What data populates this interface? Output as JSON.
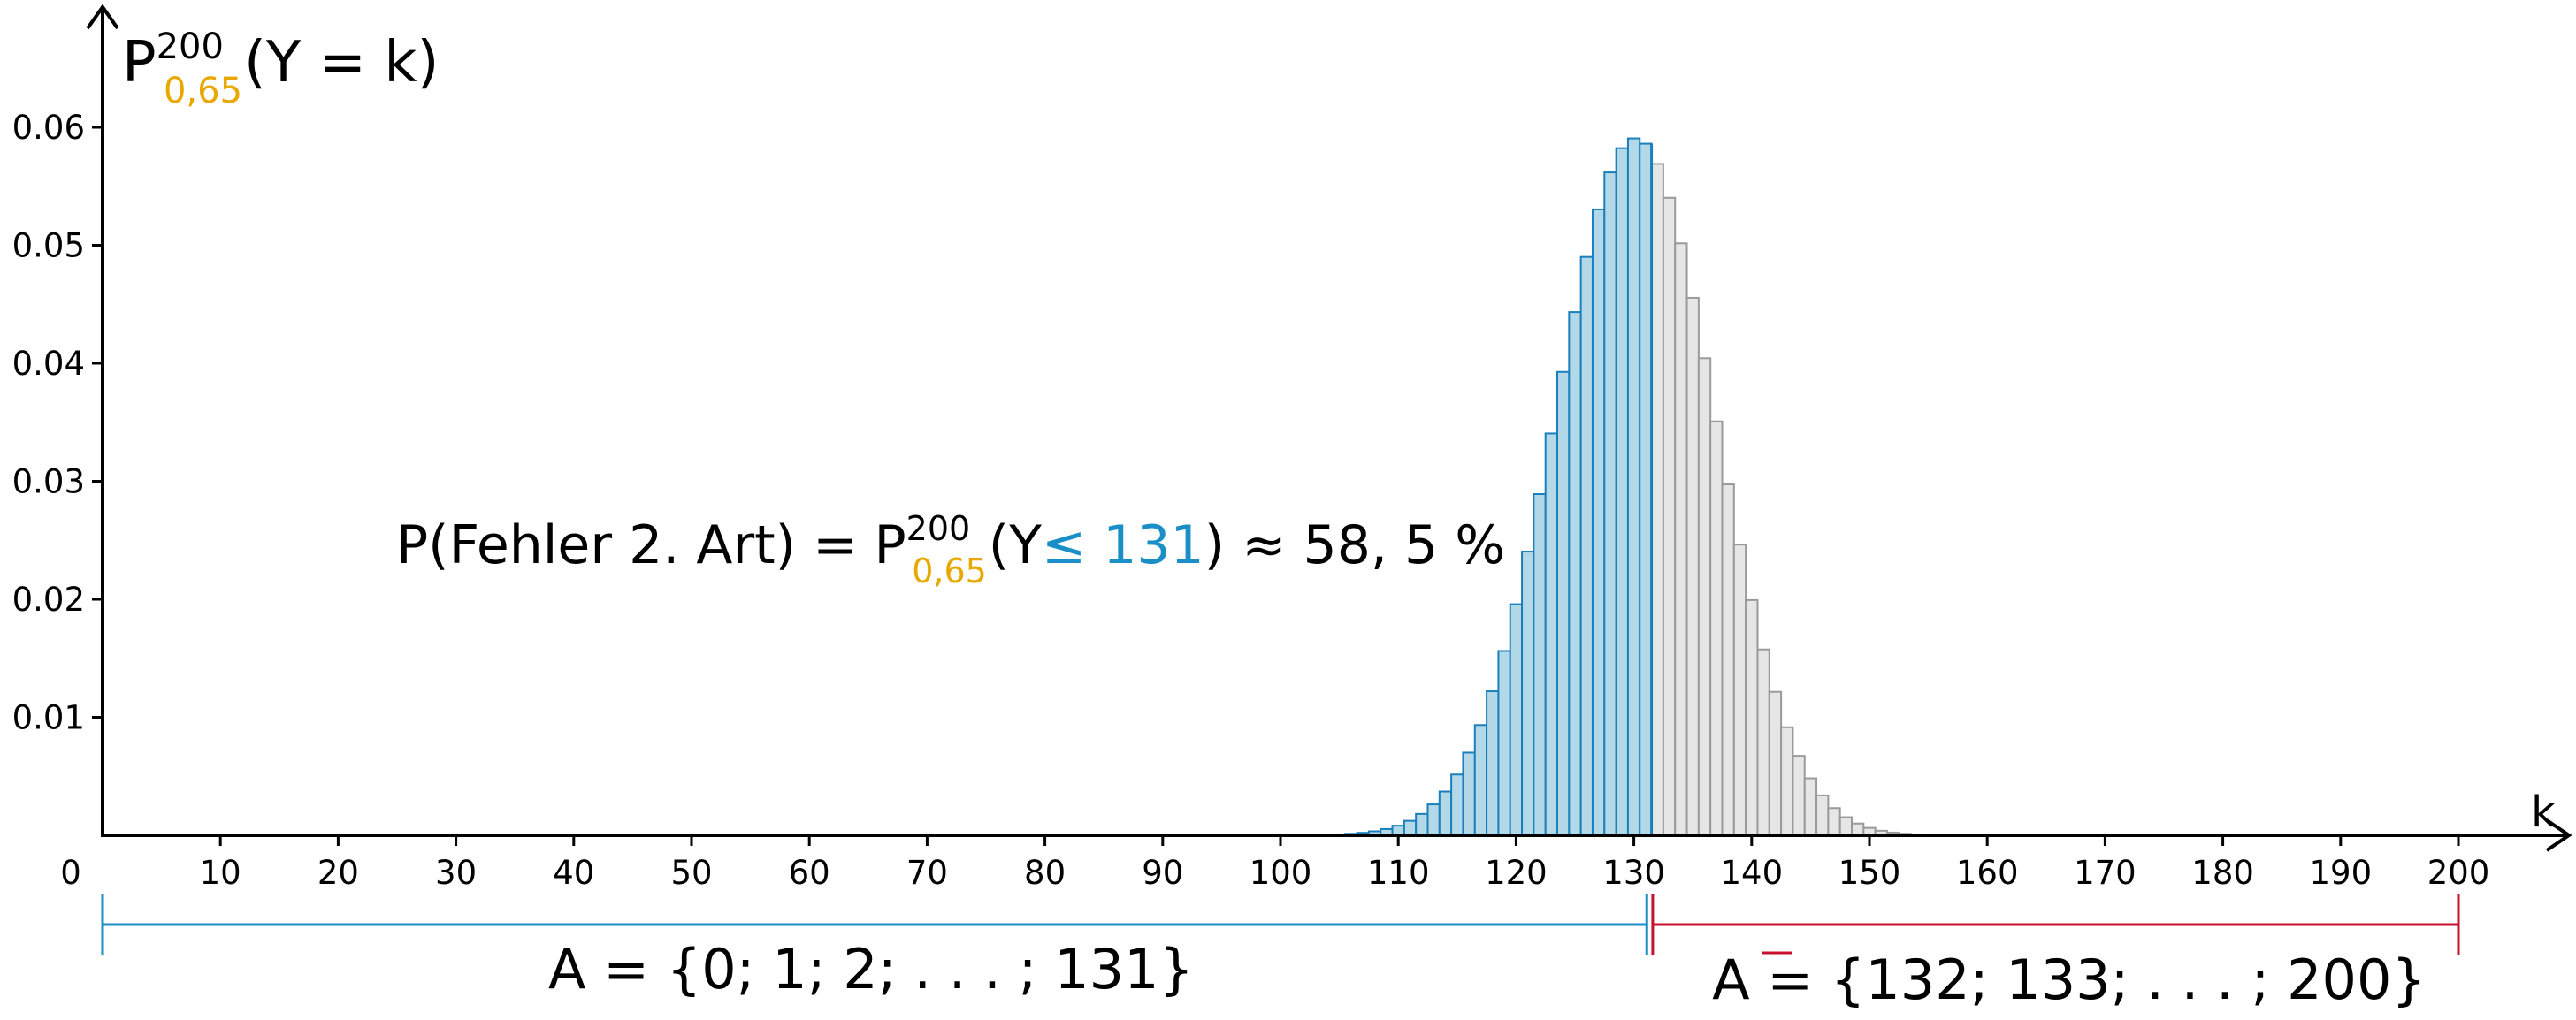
{
  "chart_data": {
    "type": "bar",
    "y_axis_label": {
      "main": "P",
      "superscript": "200",
      "subscript": "0,65",
      "rest": "(Y = k)"
    },
    "x_axis_label": "k",
    "x_ticks": [
      "10",
      "20",
      "30",
      "40",
      "50",
      "60",
      "70",
      "80",
      "90",
      "100",
      "110",
      "120",
      "130",
      "140",
      "150",
      "160",
      "170",
      "180",
      "190",
      "200"
    ],
    "x_origin_label": "0",
    "y_ticks": [
      "0.01",
      "0.02",
      "0.03",
      "0.04",
      "0.05",
      "0.06"
    ],
    "xlim": [
      0,
      200
    ],
    "ylim": [
      0,
      0.06
    ],
    "distribution": {
      "name": "binomial",
      "n": 200,
      "p": 0.65
    },
    "highlight_max_k": 131,
    "annotation": {
      "prefix": "P(Fehler 2. Art) = P",
      "superscript": "200",
      "subscript": "0,65",
      "open": "(Y",
      "relation": "≤ 131",
      "close": ") ≈ 58, 5 %"
    },
    "set_A": {
      "label": "A = {0; 1; 2; . . . ; 131}",
      "from": 0,
      "to": 131
    },
    "set_A_bar": {
      "label": "A = {132; 133; . . . ; 200}",
      "from": 132,
      "to": 200
    }
  },
  "colors": {
    "highlight_fill": "#b3d9e8",
    "highlight_stroke": "#1a7fbd",
    "rest_fill": "#e6e6e6",
    "rest_stroke": "#9a9a9a",
    "subscript": "#e8a800",
    "blue_text": "#1a8ec7",
    "red_text": "#c8102e",
    "axis": "#000000"
  }
}
